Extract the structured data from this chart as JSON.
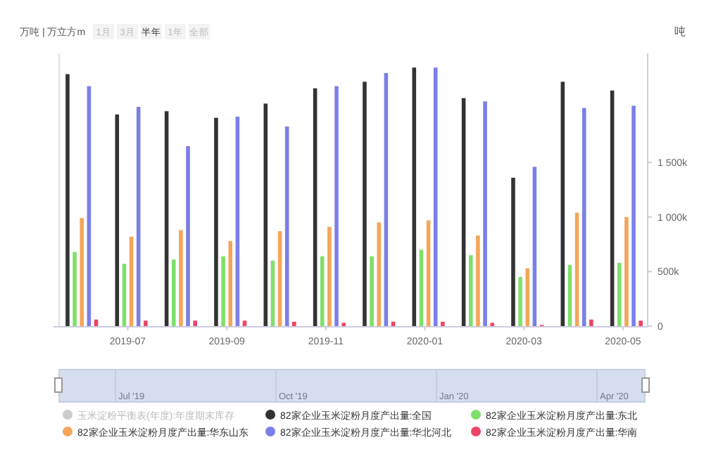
{
  "chart_data": {
    "type": "bar",
    "ylabel": "吨",
    "categories": [
      null,
      "2019-07",
      null,
      "2019-09",
      null,
      "2019-11",
      null,
      "2020-01",
      null,
      "2020-03",
      null,
      "2020-05"
    ],
    "series": [
      {
        "name": "玉米淀粉平衡表(年度):年度期末库存",
        "color": "#cccccc",
        "values": [
          null,
          null,
          null,
          null,
          null,
          null,
          null,
          null,
          null,
          null,
          null,
          null
        ]
      },
      {
        "name": "82家企业玉米淀粉月度产出量:全国",
        "color": "#333333",
        "values": [
          2310000,
          1940000,
          1970000,
          1910000,
          2040000,
          2180000,
          2240000,
          2370000,
          2090000,
          1360000,
          2240000,
          2160000
        ]
      },
      {
        "name": "82家企业玉米淀粉月度产出量:东北",
        "color": "#7ee06a",
        "values": [
          680000,
          570000,
          610000,
          640000,
          600000,
          640000,
          640000,
          700000,
          650000,
          450000,
          560000,
          580000
        ]
      },
      {
        "name": "82家企业玉米淀粉月度产出量:华东山东",
        "color": "#f5a55a",
        "values": [
          990000,
          820000,
          880000,
          780000,
          870000,
          910000,
          950000,
          970000,
          830000,
          530000,
          1040000,
          1000000
        ]
      },
      {
        "name": "82家企业玉米淀粉月度产出量:华北河北",
        "color": "#7b7fe8",
        "values": [
          2200000,
          2010000,
          1650000,
          1920000,
          1830000,
          2200000,
          2320000,
          2370000,
          2060000,
          1460000,
          2000000,
          2020000
        ]
      },
      {
        "name": "82家企业玉米淀粉月度产出量:华南",
        "color": "#ee4466",
        "values": [
          60000,
          50000,
          50000,
          50000,
          40000,
          30000,
          40000,
          40000,
          30000,
          10000,
          60000,
          50000
        ]
      }
    ],
    "ylim": [
      0,
      2500000
    ],
    "yticks": [
      0,
      {
        "value": 500000,
        "label": "500k"
      },
      {
        "value": 1000000,
        "label": "1 000k"
      },
      {
        "value": 1500000,
        "label": "1 500k"
      }
    ],
    "grid": false,
    "legend": "bottom",
    "annotations": [
      "万吨 | 万立方m",
      "1月",
      "3月",
      "半年",
      "1年",
      "全部",
      "Jul '19",
      "Oct '19",
      "Jan '20",
      "Apr '20"
    ]
  }
}
